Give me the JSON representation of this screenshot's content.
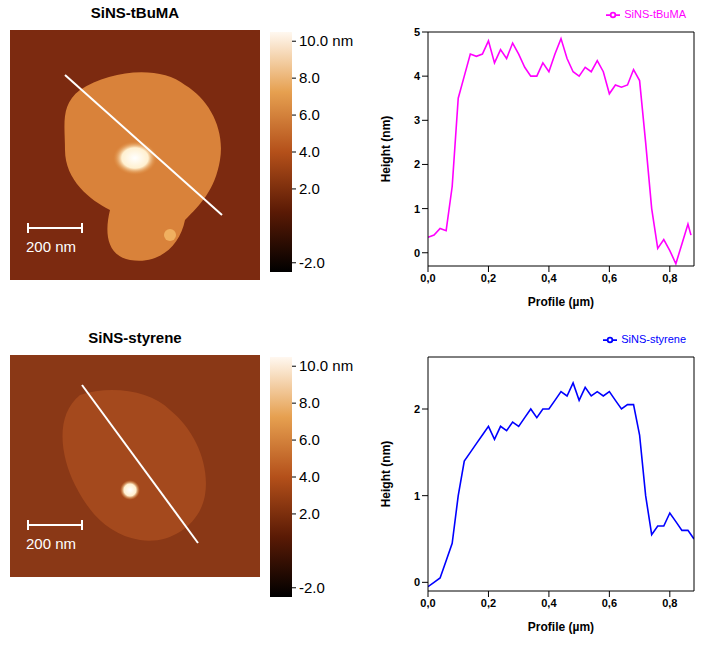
{
  "chart_data": [
    {
      "type": "line",
      "xlabel": "Profile (µm)",
      "ylabel": "Height (nm)",
      "x": [
        0,
        0.02,
        0.04,
        0.06,
        0.08,
        0.1,
        0.12,
        0.14,
        0.16,
        0.18,
        0.2,
        0.22,
        0.24,
        0.26,
        0.28,
        0.3,
        0.32,
        0.34,
        0.36,
        0.38,
        0.4,
        0.42,
        0.44,
        0.46,
        0.48,
        0.5,
        0.52,
        0.54,
        0.56,
        0.58,
        0.6,
        0.62,
        0.64,
        0.66,
        0.68,
        0.7,
        0.72,
        0.74,
        0.76,
        0.78,
        0.8,
        0.82,
        0.84,
        0.86,
        0.87
      ],
      "series": [
        {
          "name": "SiNS-tBuMA",
          "color": "#ff00ff",
          "values": [
            0.35,
            0.4,
            0.55,
            0.5,
            1.5,
            3.5,
            4.0,
            4.5,
            4.45,
            4.5,
            4.8,
            4.3,
            4.6,
            4.4,
            4.75,
            4.5,
            4.2,
            4.0,
            4.0,
            4.3,
            4.1,
            4.5,
            4.85,
            4.4,
            4.1,
            4.0,
            4.2,
            4.1,
            4.35,
            4.1,
            3.6,
            3.8,
            3.75,
            3.8,
            4.15,
            3.9,
            2.5,
            1.0,
            0.1,
            0.3,
            0.05,
            -0.25,
            0.2,
            0.65,
            0.4
          ]
        }
      ],
      "xlim": [
        0,
        0.88
      ],
      "xticks": [
        {
          "value": 0,
          "label": "0,0"
        },
        {
          "value": 0.2,
          "label": "0,2"
        },
        {
          "value": 0.4,
          "label": "0,4"
        },
        {
          "value": 0.6,
          "label": "0,6"
        },
        {
          "value": 0.8,
          "label": "0,8"
        }
      ],
      "ylim": [
        -0.3,
        5
      ],
      "yticks": [
        0,
        1,
        2,
        3,
        4,
        5
      ],
      "legend": "upper right",
      "grid": false
    },
    {
      "type": "line",
      "xlabel": "Profile (µm)",
      "ylabel": "Height (nm)",
      "x": [
        0,
        0.02,
        0.04,
        0.06,
        0.08,
        0.1,
        0.12,
        0.14,
        0.16,
        0.18,
        0.2,
        0.22,
        0.24,
        0.26,
        0.28,
        0.3,
        0.32,
        0.34,
        0.36,
        0.38,
        0.4,
        0.42,
        0.44,
        0.46,
        0.48,
        0.5,
        0.52,
        0.54,
        0.56,
        0.58,
        0.6,
        0.62,
        0.64,
        0.66,
        0.68,
        0.7,
        0.72,
        0.74,
        0.76,
        0.78,
        0.8,
        0.82,
        0.84,
        0.86,
        0.88
      ],
      "series": [
        {
          "name": "SiNS-styrene",
          "color": "#0000ff",
          "values": [
            -0.05,
            0.0,
            0.05,
            0.25,
            0.45,
            1.0,
            1.4,
            1.5,
            1.6,
            1.7,
            1.8,
            1.65,
            1.8,
            1.75,
            1.85,
            1.8,
            1.9,
            2.0,
            1.9,
            2.0,
            2.0,
            2.1,
            2.2,
            2.15,
            2.3,
            2.1,
            2.25,
            2.15,
            2.2,
            2.15,
            2.2,
            2.1,
            2.0,
            2.05,
            2.05,
            1.7,
            1.0,
            0.55,
            0.65,
            0.65,
            0.8,
            0.7,
            0.6,
            0.6,
            0.5
          ]
        }
      ],
      "xlim": [
        0,
        0.88
      ],
      "xticks": [
        {
          "value": 0,
          "label": "0,0"
        },
        {
          "value": 0.2,
          "label": "0,2"
        },
        {
          "value": 0.4,
          "label": "0,4"
        },
        {
          "value": 0.6,
          "label": "0,6"
        },
        {
          "value": 0.8,
          "label": "0,8"
        }
      ],
      "ylim": [
        -0.1,
        2.6
      ],
      "yticks": [
        0,
        1,
        2
      ],
      "legend": "upper right",
      "grid": false
    }
  ],
  "images": [
    {
      "title": "SiNS-tBuMA",
      "scale_bar": "200 nm",
      "colorbar": {
        "range": [
          -2.5,
          10.5
        ],
        "ticks": [
          {
            "value": 10,
            "label": "10.0 nm"
          },
          {
            "value": 8,
            "label": "8.0"
          },
          {
            "value": 6,
            "label": "6.0"
          },
          {
            "value": 4,
            "label": "4.0"
          },
          {
            "value": 2,
            "label": "2.0"
          },
          {
            "value": -2,
            "label": "-2.0"
          }
        ]
      }
    },
    {
      "title": "SiNS-styrene",
      "scale_bar": "200 nm",
      "colorbar": {
        "range": [
          -2.5,
          10.5
        ],
        "ticks": [
          {
            "value": 10,
            "label": "10.0 nm"
          },
          {
            "value": 8,
            "label": "8.0"
          },
          {
            "value": 6,
            "label": "6.0"
          },
          {
            "value": 4,
            "label": "4.0"
          },
          {
            "value": 2,
            "label": "2.0"
          },
          {
            "value": -2,
            "label": "-2.0"
          }
        ]
      }
    }
  ]
}
